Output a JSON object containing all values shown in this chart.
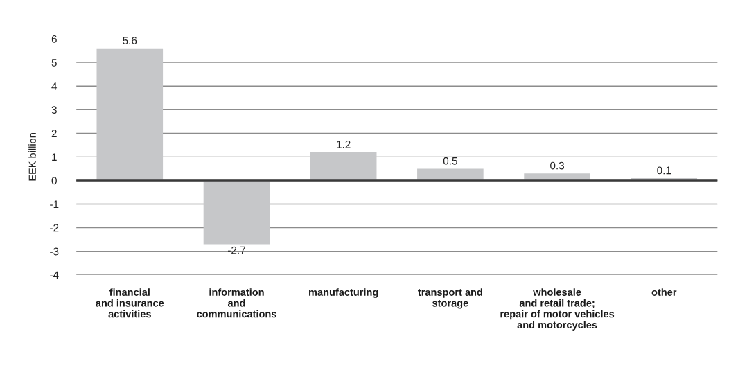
{
  "chart_data": {
    "type": "bar",
    "ylabel": "EEK billion",
    "categories": [
      "financial\nand insurance\nactivities",
      "information\nand\ncommunications",
      "manufacturing",
      "transport and\nstorage",
      "wholesale\nand retail trade;\nrepair of motor vehicles\nand motorcycles",
      "other"
    ],
    "values": [
      5.6,
      -2.7,
      1.2,
      0.5,
      0.3,
      0.1
    ],
    "color": "#c6c7c9",
    "ylim": [
      -4,
      6
    ],
    "yticks": [
      -4,
      -3,
      -2,
      -1,
      0,
      1,
      2,
      3,
      4,
      5,
      6
    ],
    "grid": "y",
    "data_labels": true
  }
}
